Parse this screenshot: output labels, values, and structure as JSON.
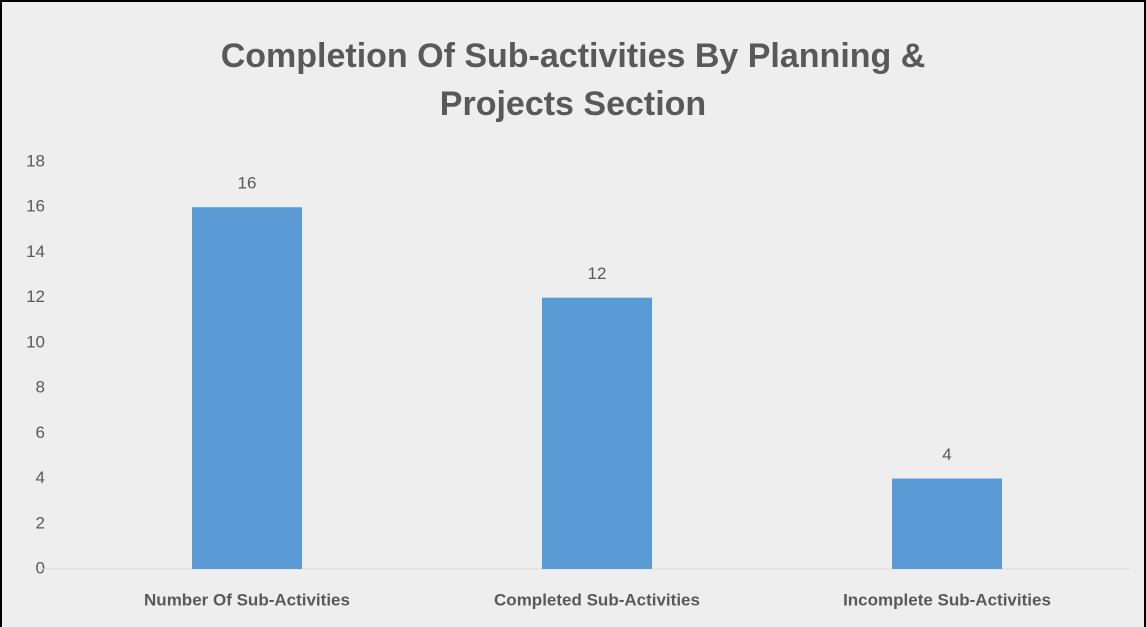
{
  "chart_data": {
    "type": "bar",
    "title": [
      "Completion Of Sub-activities By Planning &",
      "Projects Section"
    ],
    "categories": [
      "Number Of Sub-Activities",
      "Completed Sub-Activities",
      "Incomplete Sub-Activities"
    ],
    "values": [
      16,
      12,
      4
    ],
    "color": "#5b9bd5",
    "ylim": [
      0,
      18
    ],
    "yticks": [
      0,
      2,
      4,
      6,
      8,
      10,
      12,
      14,
      16,
      18
    ],
    "grid": false,
    "data_labels": true
  }
}
